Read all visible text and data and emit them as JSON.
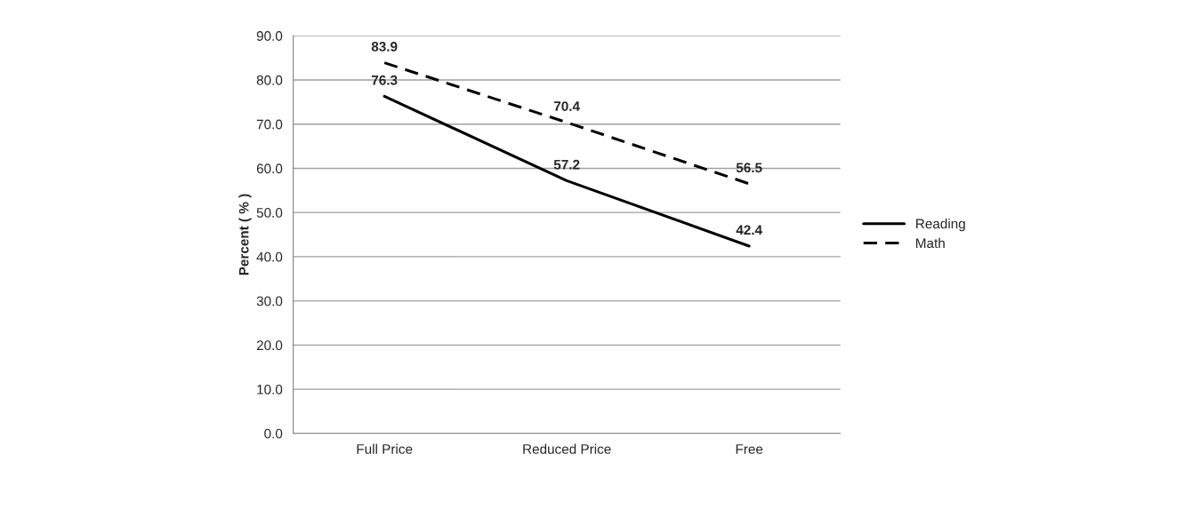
{
  "chart_data": {
    "type": "line",
    "ylabel": "Percent ( % )",
    "categories": [
      "Full Price",
      "Reduced Price",
      "Free"
    ],
    "series": [
      {
        "name": "Reading",
        "color": "#000000",
        "line_style": "solid",
        "values": [
          76.3,
          57.2,
          42.4
        ]
      },
      {
        "name": "Math",
        "color": "#000000",
        "line_style": "dashed",
        "values": [
          83.9,
          70.4,
          56.5
        ]
      }
    ],
    "ylim": [
      0,
      90
    ],
    "yticks": [
      {
        "value": 0,
        "label": "0.0"
      },
      {
        "value": 10,
        "label": "10.0"
      },
      {
        "value": 20,
        "label": "20.0"
      },
      {
        "value": 30,
        "label": "30.0"
      },
      {
        "value": 40,
        "label": "40.0"
      },
      {
        "value": 50,
        "label": "50.0"
      },
      {
        "value": 60,
        "label": "60.0"
      },
      {
        "value": 70,
        "label": "70.0"
      },
      {
        "value": 80,
        "label": "80.0"
      },
      {
        "value": 90,
        "label": "90.0"
      }
    ],
    "grid": "y",
    "legend": "right",
    "data_labels": true,
    "marker": "none"
  }
}
